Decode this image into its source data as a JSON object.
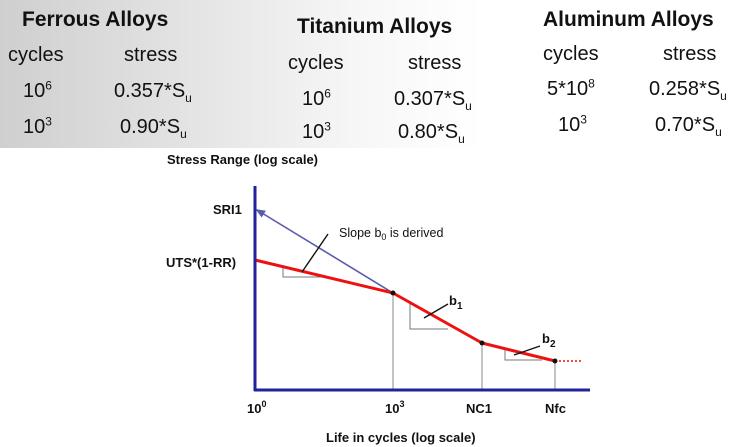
{
  "tables": {
    "ferrous": {
      "title": "Ferrous Alloys",
      "col_cycles": "cycles",
      "col_stress": "stress",
      "rows": [
        {
          "cyc_base": "10",
          "cyc_exp": "6",
          "stress_base": "0.357*S",
          "stress_sub": "u"
        },
        {
          "cyc_base": "10",
          "cyc_exp": "3",
          "stress_base": "0.90*S",
          "stress_sub": "u"
        }
      ]
    },
    "titanium": {
      "title": "Titanium Alloys",
      "col_cycles": "cycles",
      "col_stress": "stress",
      "rows": [
        {
          "cyc_base": "10",
          "cyc_exp": "6",
          "stress_base": "0.307*S",
          "stress_sub": "u"
        },
        {
          "cyc_base": "10",
          "cyc_exp": "3",
          "stress_base": "0.80*S",
          "stress_sub": "u"
        }
      ]
    },
    "aluminum": {
      "title": "Aluminum Alloys",
      "col_cycles": "cycles",
      "col_stress": "stress",
      "rows": [
        {
          "cyc_base": "5*10",
          "cyc_exp": "8",
          "stress_base": "0.258*S",
          "stress_sub": "u"
        },
        {
          "cyc_base": "10",
          "cyc_exp": "3",
          "stress_base": "0.70*S",
          "stress_sub": "u"
        }
      ]
    }
  },
  "diagram": {
    "y_axis_title": "Stress Range (log scale)",
    "x_axis_title": "Life in cycles (log scale)",
    "label_sri1": "SRI1",
    "label_uts": "UTS*(1-RR)",
    "slope_note_pre": "Slope b",
    "slope_note_sub": "0",
    "slope_note_post": " is derived",
    "b1_base": "b",
    "b1_sub": "1",
    "b2_base": "b",
    "b2_sub": "2",
    "x_tick_1_base": "10",
    "x_tick_1_exp": "0",
    "x_tick_2_base": "10",
    "x_tick_2_exp": "3",
    "x_tick_3": "NC1",
    "x_tick_4": "Nfc",
    "curve_color": "#ee1111",
    "axis_color": "#22229a",
    "slope_line_color": "#5a5ab0"
  }
}
